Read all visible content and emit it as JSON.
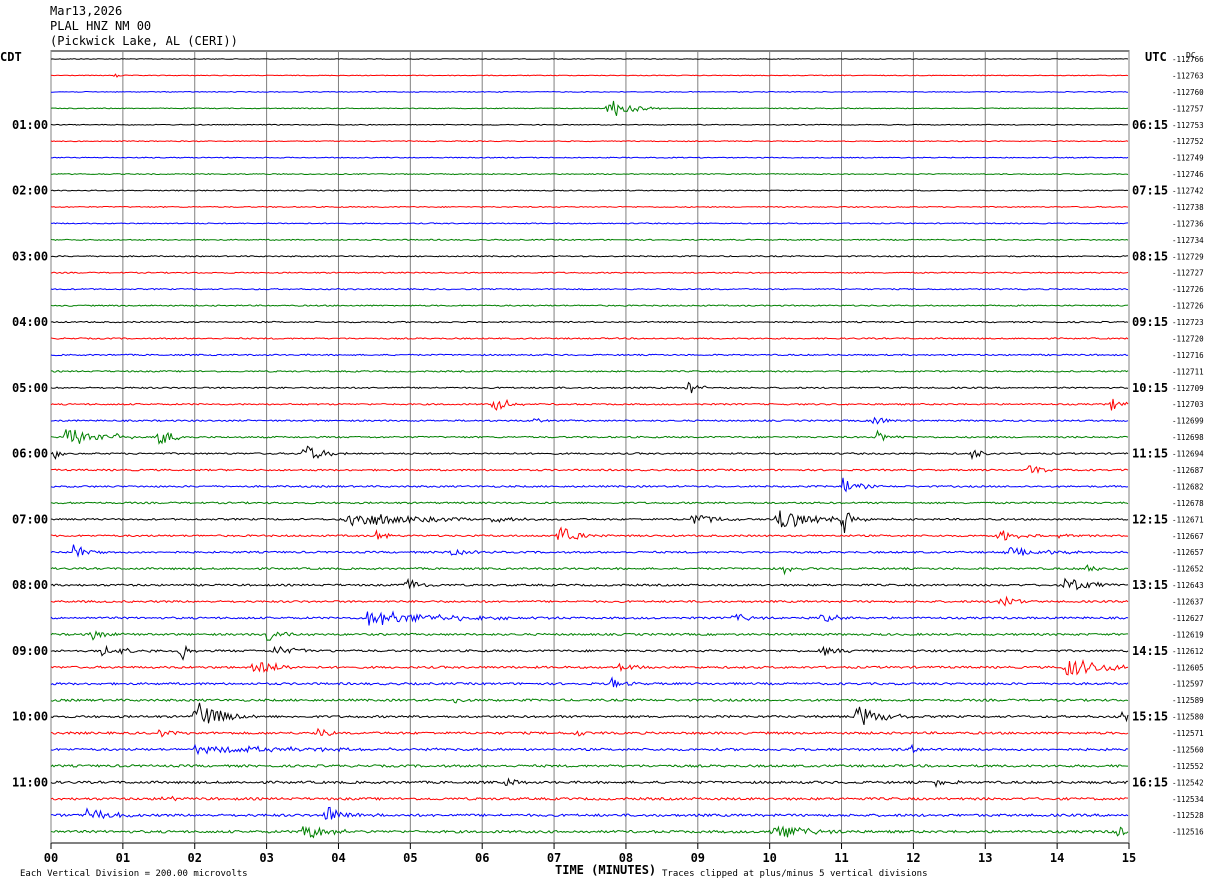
{
  "header": {
    "date": "Mar13,2026",
    "station": "PLAL HNZ NM 00",
    "location": "(Pickwick Lake, AL (CERI))"
  },
  "left_axis_label": "CDT",
  "right_axis_label": "UTC",
  "dc_label": "DC",
  "footer": {
    "scale_text": "Each Vertical Division =  200.00 microvolts",
    "clip_text": "Traces clipped at plus/minus 5 vertical divisions"
  },
  "chart_data": {
    "type": "line",
    "title": "PLAL HNZ NM 00",
    "xlabel": "TIME (MINUTES)",
    "ylabel": "",
    "xlim": [
      0,
      15
    ],
    "x_ticks": [
      "00",
      "01",
      "02",
      "03",
      "04",
      "05",
      "06",
      "07",
      "08",
      "09",
      "10",
      "11",
      "12",
      "13",
      "14",
      "15"
    ],
    "rows_per_hour": 4,
    "minutes_per_row": 15,
    "trace_colors": [
      "#000000",
      "#ff0000",
      "#0000ff",
      "#008000"
    ],
    "cdt_hour_labels": [
      "01:00",
      "02:00",
      "03:00",
      "04:00",
      "05:00",
      "06:00",
      "07:00",
      "08:00",
      "09:00",
      "10:00",
      "11:00"
    ],
    "utc_hour_labels": [
      "06:15",
      "07:15",
      "08:15",
      "09:15",
      "10:15",
      "11:15",
      "12:15",
      "13:15",
      "14:15",
      "15:15",
      "16:15"
    ],
    "dc_offsets": [
      -112766,
      -112763,
      -112760,
      -112757,
      -112753,
      -112752,
      -112749,
      -112746,
      -112742,
      -112738,
      -112736,
      -112734,
      -112729,
      -112727,
      -112726,
      -112726,
      -112723,
      -112720,
      -112716,
      -112711,
      -112709,
      -112703,
      -112699,
      -112698,
      -112694,
      -112687,
      -112682,
      -112678,
      -112671,
      -112667,
      -112657,
      -112652,
      -112643,
      -112637,
      -112627,
      -112619,
      -112612,
      -112605,
      -112597,
      -112589,
      -112580,
      -112571,
      -112560,
      -112552,
      -112542,
      -112534,
      -112528,
      -112516
    ],
    "events": [
      {
        "row": 1,
        "minute": 0.9,
        "amp": 0.4,
        "dur": 0.05
      },
      {
        "row": 3,
        "minute": 7.75,
        "amp": 1.4,
        "dur": 0.25
      },
      {
        "row": 20,
        "minute": 8.85,
        "amp": 0.9,
        "dur": 0.15
      },
      {
        "row": 21,
        "minute": 6.15,
        "amp": 1.0,
        "dur": 0.2
      },
      {
        "row": 21,
        "minute": 14.75,
        "amp": 0.8,
        "dur": 0.15
      },
      {
        "row": 22,
        "minute": 6.7,
        "amp": 0.4,
        "dur": 0.1
      },
      {
        "row": 22,
        "minute": 11.45,
        "amp": 1.0,
        "dur": 0.12
      },
      {
        "row": 23,
        "minute": 0.2,
        "amp": 1.3,
        "dur": 0.3
      },
      {
        "row": 23,
        "minute": 0.9,
        "amp": 0.6,
        "dur": 0.15
      },
      {
        "row": 23,
        "minute": 1.5,
        "amp": 1.3,
        "dur": 0.15
      },
      {
        "row": 23,
        "minute": 11.5,
        "amp": 0.7,
        "dur": 0.15
      },
      {
        "row": 24,
        "minute": 0.05,
        "amp": 0.8,
        "dur": 0.08
      },
      {
        "row": 24,
        "minute": 3.5,
        "amp": 1.2,
        "dur": 0.25
      },
      {
        "row": 24,
        "minute": 12.8,
        "amp": 0.7,
        "dur": 0.15
      },
      {
        "row": 25,
        "minute": 13.6,
        "amp": 0.6,
        "dur": 0.2
      },
      {
        "row": 26,
        "minute": 11.0,
        "amp": 1.0,
        "dur": 0.2
      },
      {
        "row": 28,
        "minute": 4.1,
        "amp": 1.0,
        "dur": 0.8
      },
      {
        "row": 28,
        "minute": 6.1,
        "amp": 0.5,
        "dur": 0.3
      },
      {
        "row": 28,
        "minute": 8.9,
        "amp": 0.8,
        "dur": 0.3
      },
      {
        "row": 28,
        "minute": 10.1,
        "amp": 1.1,
        "dur": 0.6
      },
      {
        "row": 28,
        "minute": 11.0,
        "amp": 2.2,
        "dur": 0.08
      },
      {
        "row": 29,
        "minute": 4.5,
        "amp": 0.6,
        "dur": 0.15
      },
      {
        "row": 29,
        "minute": 7.05,
        "amp": 1.2,
        "dur": 0.25
      },
      {
        "row": 29,
        "minute": 13.2,
        "amp": 0.8,
        "dur": 0.2
      },
      {
        "row": 29,
        "minute": 14.0,
        "amp": 0.5,
        "dur": 0.15
      },
      {
        "row": 30,
        "minute": 0.3,
        "amp": 1.1,
        "dur": 0.2
      },
      {
        "row": 30,
        "minute": 5.5,
        "amp": 0.4,
        "dur": 0.3
      },
      {
        "row": 30,
        "minute": 13.3,
        "amp": 0.5,
        "dur": 0.6
      },
      {
        "row": 31,
        "minute": 10.2,
        "amp": 0.8,
        "dur": 0.1
      },
      {
        "row": 31,
        "minute": 14.4,
        "amp": 0.5,
        "dur": 0.15
      },
      {
        "row": 32,
        "minute": 4.95,
        "amp": 1.0,
        "dur": 0.15
      },
      {
        "row": 32,
        "minute": 14.1,
        "amp": 1.1,
        "dur": 0.3
      },
      {
        "row": 33,
        "minute": 13.2,
        "amp": 1.2,
        "dur": 0.15
      },
      {
        "row": 34,
        "minute": 4.4,
        "amp": 0.9,
        "dur": 0.9
      },
      {
        "row": 34,
        "minute": 9.5,
        "amp": 0.6,
        "dur": 0.2
      },
      {
        "row": 34,
        "minute": 10.7,
        "amp": 0.7,
        "dur": 0.2
      },
      {
        "row": 35,
        "minute": 0.55,
        "amp": 0.8,
        "dur": 0.2
      },
      {
        "row": 35,
        "minute": 3.0,
        "amp": 1.0,
        "dur": 0.2
      },
      {
        "row": 36,
        "minute": 0.7,
        "amp": 0.5,
        "dur": 0.4
      },
      {
        "row": 36,
        "minute": 1.8,
        "amp": 1.8,
        "dur": 0.08
      },
      {
        "row": 36,
        "minute": 3.1,
        "amp": 0.6,
        "dur": 0.3
      },
      {
        "row": 36,
        "minute": 10.7,
        "amp": 0.6,
        "dur": 0.3
      },
      {
        "row": 37,
        "minute": 2.8,
        "amp": 1.0,
        "dur": 0.3
      },
      {
        "row": 37,
        "minute": 7.9,
        "amp": 0.6,
        "dur": 0.15
      },
      {
        "row": 37,
        "minute": 14.1,
        "amp": 1.2,
        "dur": 0.5
      },
      {
        "row": 38,
        "minute": 7.8,
        "amp": 0.7,
        "dur": 0.15
      },
      {
        "row": 39,
        "minute": 5.6,
        "amp": 0.4,
        "dur": 0.15
      },
      {
        "row": 40,
        "minute": 2.0,
        "amp": 1.9,
        "dur": 0.3
      },
      {
        "row": 40,
        "minute": 11.2,
        "amp": 1.4,
        "dur": 0.3
      },
      {
        "row": 40,
        "minute": 14.9,
        "amp": 0.5,
        "dur": 0.2
      },
      {
        "row": 41,
        "minute": 1.5,
        "amp": 0.5,
        "dur": 0.15
      },
      {
        "row": 41,
        "minute": 3.7,
        "amp": 0.6,
        "dur": 0.15
      },
      {
        "row": 41,
        "minute": 7.3,
        "amp": 0.5,
        "dur": 0.15
      },
      {
        "row": 42,
        "minute": 2.0,
        "amp": 0.4,
        "dur": 1.6
      },
      {
        "row": 42,
        "minute": 11.9,
        "amp": 0.7,
        "dur": 0.15
      },
      {
        "row": 44,
        "minute": 6.35,
        "amp": 0.8,
        "dur": 0.1
      },
      {
        "row": 44,
        "minute": 12.3,
        "amp": 0.5,
        "dur": 0.2
      },
      {
        "row": 45,
        "minute": 1.55,
        "amp": 0.6,
        "dur": 0.1
      },
      {
        "row": 46,
        "minute": 0.5,
        "amp": 0.8,
        "dur": 0.3
      },
      {
        "row": 46,
        "minute": 3.8,
        "amp": 1.2,
        "dur": 0.3
      },
      {
        "row": 47,
        "minute": 3.5,
        "amp": 1.0,
        "dur": 0.3
      },
      {
        "row": 47,
        "minute": 10.0,
        "amp": 1.1,
        "dur": 0.4
      },
      {
        "row": 47,
        "minute": 14.8,
        "amp": 0.6,
        "dur": 0.4
      }
    ]
  }
}
